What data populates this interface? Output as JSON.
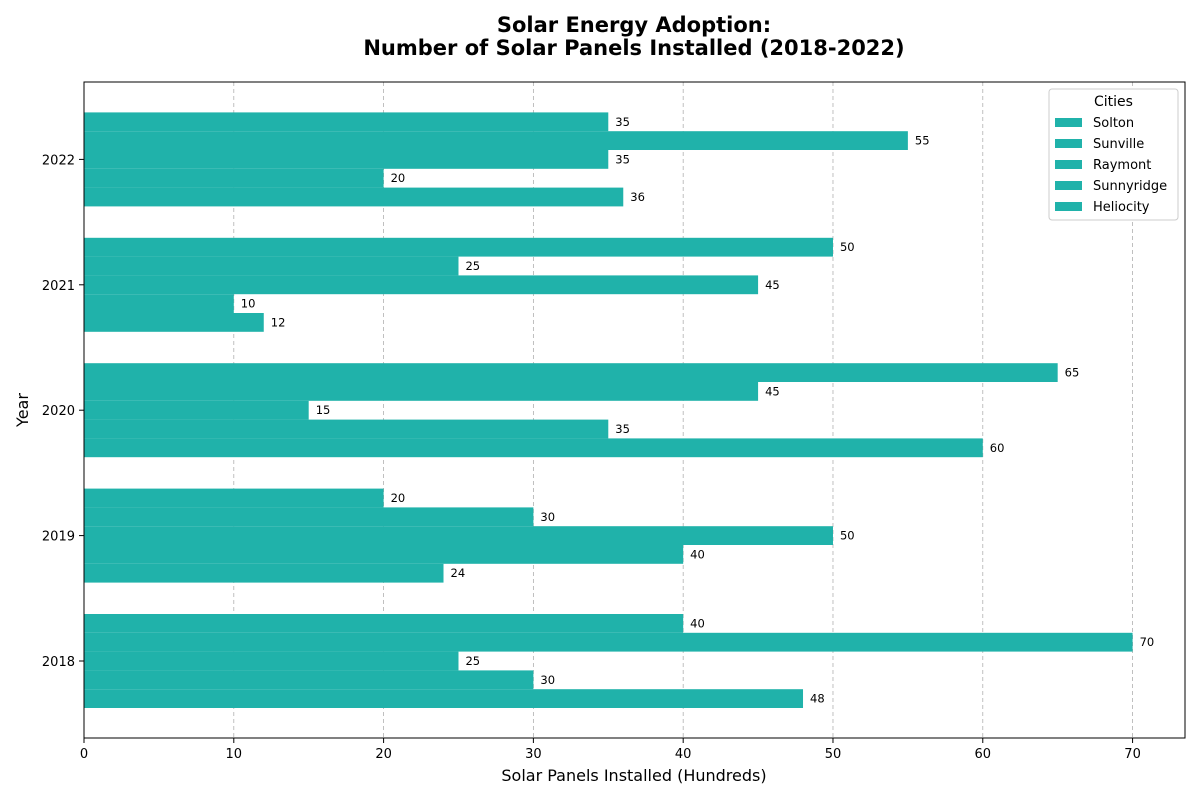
{
  "chart_data": {
    "type": "bar",
    "orientation": "horizontal",
    "title_line1": "Solar Energy Adoption:",
    "title_line2": "Number of Solar Panels Installed (2018-2022)",
    "xlabel": "Solar Panels Installed (Hundreds)",
    "ylabel": "Year",
    "categories": [
      "2018",
      "2019",
      "2020",
      "2021",
      "2022"
    ],
    "xlim": [
      0,
      73.5
    ],
    "xticks": [
      0,
      10,
      20,
      30,
      40,
      50,
      60,
      70
    ],
    "grid": "x-dashed",
    "bar_color": "#20b2aa",
    "legend_title": "Cities",
    "legend_position": "top-right",
    "series": [
      {
        "name": "Solton",
        "values": [
          48,
          24,
          60,
          12,
          36
        ]
      },
      {
        "name": "Sunville",
        "values": [
          30,
          40,
          35,
          10,
          20
        ]
      },
      {
        "name": "Raymont",
        "values": [
          25,
          50,
          15,
          45,
          35
        ]
      },
      {
        "name": "Sunnyridge",
        "values": [
          70,
          30,
          45,
          25,
          55
        ]
      },
      {
        "name": "Heliocity",
        "values": [
          40,
          20,
          65,
          50,
          35
        ]
      }
    ]
  }
}
